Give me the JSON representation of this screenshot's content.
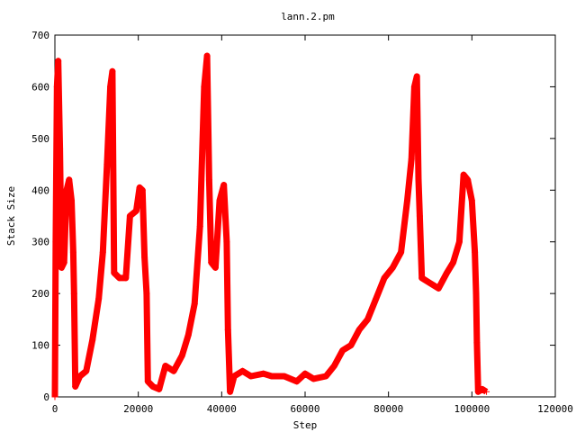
{
  "chart_data": {
    "type": "scatter",
    "title": "lann.2.pm",
    "xlabel": "Step",
    "ylabel": "Stack Size",
    "xlim": [
      0,
      120000
    ],
    "ylim": [
      0,
      700
    ],
    "x_ticks": [
      0,
      20000,
      40000,
      60000,
      80000,
      100000,
      120000
    ],
    "y_ticks": [
      0,
      100,
      200,
      300,
      400,
      500,
      600,
      700
    ],
    "x_tick_labels": [
      "0",
      "20000",
      "40000",
      "60000",
      "80000",
      "100000",
      "120000"
    ],
    "y_tick_labels": [
      "0",
      "100",
      "200",
      "300",
      "400",
      "500",
      "600",
      "700"
    ],
    "grid": false,
    "legend": "none",
    "marker": "+",
    "color": "#ff0000",
    "series": [
      {
        "points": [
          [
            0,
            0
          ],
          [
            200,
            300
          ],
          [
            500,
            600
          ],
          [
            800,
            650
          ],
          [
            1200,
            480
          ],
          [
            1600,
            250
          ],
          [
            2200,
            260
          ],
          [
            2800,
            400
          ],
          [
            3400,
            420
          ],
          [
            4000,
            380
          ],
          [
            4400,
            280
          ],
          [
            4600,
            200
          ],
          [
            4900,
            20
          ],
          [
            6000,
            40
          ],
          [
            7500,
            50
          ],
          [
            9000,
            110
          ],
          [
            10500,
            190
          ],
          [
            11500,
            280
          ],
          [
            12500,
            450
          ],
          [
            13300,
            600
          ],
          [
            13800,
            630
          ],
          [
            14200,
            240
          ],
          [
            15500,
            230
          ],
          [
            17000,
            230
          ],
          [
            18000,
            350
          ],
          [
            19500,
            360
          ],
          [
            20300,
            405
          ],
          [
            21000,
            400
          ],
          [
            21500,
            270
          ],
          [
            22000,
            200
          ],
          [
            22300,
            30
          ],
          [
            23500,
            20
          ],
          [
            25000,
            15
          ],
          [
            26500,
            60
          ],
          [
            28500,
            50
          ],
          [
            30500,
            80
          ],
          [
            32000,
            120
          ],
          [
            33500,
            180
          ],
          [
            34800,
            330
          ],
          [
            35800,
            600
          ],
          [
            36500,
            660
          ],
          [
            37000,
            420
          ],
          [
            37500,
            260
          ],
          [
            38500,
            250
          ],
          [
            39500,
            380
          ],
          [
            40500,
            410
          ],
          [
            41200,
            300
          ],
          [
            41500,
            130
          ],
          [
            42000,
            10
          ],
          [
            43000,
            40
          ],
          [
            45000,
            50
          ],
          [
            47000,
            40
          ],
          [
            50000,
            45
          ],
          [
            52000,
            40
          ],
          [
            55000,
            40
          ],
          [
            58000,
            30
          ],
          [
            60000,
            45
          ],
          [
            62000,
            35
          ],
          [
            65000,
            40
          ],
          [
            67000,
            60
          ],
          [
            69000,
            90
          ],
          [
            71000,
            100
          ],
          [
            73000,
            130
          ],
          [
            75000,
            150
          ],
          [
            77000,
            190
          ],
          [
            79000,
            230
          ],
          [
            81000,
            250
          ],
          [
            83000,
            280
          ],
          [
            84500,
            380
          ],
          [
            85500,
            460
          ],
          [
            86200,
            600
          ],
          [
            86800,
            620
          ],
          [
            87200,
            420
          ],
          [
            87500,
            350
          ],
          [
            88000,
            230
          ],
          [
            90000,
            220
          ],
          [
            92000,
            210
          ],
          [
            94000,
            240
          ],
          [
            95500,
            260
          ],
          [
            97000,
            300
          ],
          [
            98000,
            430
          ],
          [
            99000,
            420
          ],
          [
            100000,
            380
          ],
          [
            100700,
            280
          ],
          [
            101000,
            200
          ],
          [
            101200,
            105
          ],
          [
            101500,
            10
          ],
          [
            102500,
            15
          ],
          [
            103500,
            10
          ]
        ]
      }
    ]
  }
}
